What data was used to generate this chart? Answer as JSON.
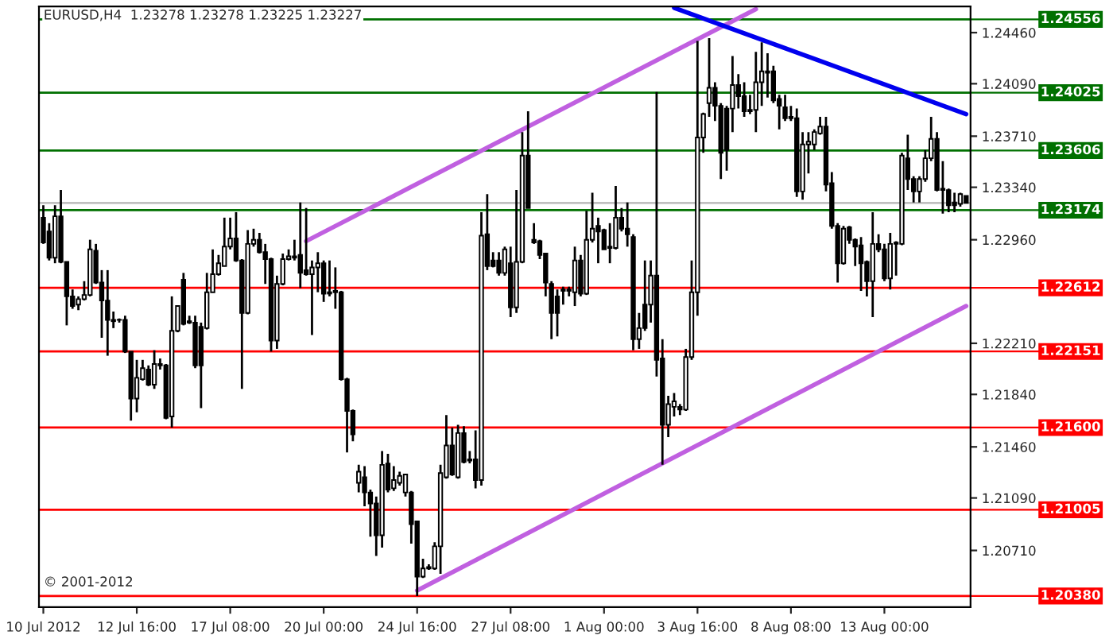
{
  "chart_data": {
    "type": "candlestick",
    "title": "EURUSD,H4  1.23278 1.23278 1.23225 1.23227",
    "annotations": [
      "© 2001-2012"
    ],
    "categories": [
      "10 Jul 2012",
      null,
      null,
      null,
      null,
      null,
      null,
      null,
      null,
      null,
      null,
      null,
      null,
      null,
      null,
      null,
      "12 Jul 16:00",
      null,
      null,
      null,
      null,
      null,
      null,
      null,
      null,
      null,
      null,
      null,
      null,
      null,
      null,
      null,
      "17 Jul 08:00",
      null,
      null,
      null,
      null,
      null,
      null,
      null,
      null,
      null,
      null,
      null,
      null,
      null,
      null,
      null,
      "20 Jul 00:00",
      null,
      null,
      null,
      null,
      null,
      null,
      null,
      null,
      null,
      null,
      null,
      null,
      null,
      null,
      null,
      "24 Jul 16:00",
      null,
      null,
      null,
      null,
      null,
      null,
      null,
      null,
      null,
      null,
      null,
      null,
      null,
      null,
      null,
      "27 Jul 08:00",
      null,
      null,
      null,
      null,
      null,
      null,
      null,
      null,
      null,
      null,
      null,
      null,
      null,
      null,
      null,
      "1 Aug 00:00",
      null,
      null,
      null,
      null,
      null,
      null,
      null,
      null,
      null,
      null,
      null,
      null,
      null,
      null,
      null,
      "3 Aug 16:00",
      null,
      null,
      null,
      null,
      null,
      null,
      null,
      null,
      null,
      null,
      null,
      null,
      null,
      null,
      null,
      "8 Aug 08:00",
      null,
      null,
      null,
      null,
      null,
      null,
      null,
      null,
      null,
      null,
      null,
      null,
      null,
      null,
      null,
      "13 Aug 00:00",
      null,
      null,
      null,
      null,
      null,
      null,
      null,
      null,
      null,
      null,
      null,
      null,
      null,
      null
    ],
    "ohlc": [
      [
        1.2312,
        1.2321,
        1.2293,
        1.2294
      ],
      [
        1.2302,
        1.2308,
        1.2281,
        1.2283
      ],
      [
        1.2283,
        1.2321,
        1.2279,
        1.2313
      ],
      [
        1.2313,
        1.2332,
        1.2279,
        1.228
      ],
      [
        1.228,
        1.228,
        1.2234,
        1.2255
      ],
      [
        1.2255,
        1.226,
        1.2246,
        1.2248
      ],
      [
        1.2249,
        1.2255,
        1.2245,
        1.2253
      ],
      [
        1.2253,
        1.2266,
        1.2252,
        1.2256
      ],
      [
        1.2256,
        1.2296,
        1.2255,
        1.2289
      ],
      [
        1.2288,
        1.2293,
        1.2264,
        1.2265
      ],
      [
        1.2265,
        1.2274,
        1.2225,
        1.2252
      ],
      [
        1.2252,
        1.2274,
        1.2212,
        1.2238
      ],
      [
        1.2238,
        1.2244,
        1.2232,
        1.2237
      ],
      [
        1.2238,
        1.2239,
        1.2236,
        1.2238
      ],
      [
        1.2238,
        1.2241,
        1.2214,
        1.2215
      ],
      [
        1.2215,
        1.2215,
        1.2165,
        1.2181
      ],
      [
        1.2181,
        1.2209,
        1.2171,
        1.2196
      ],
      [
        1.2195,
        1.2209,
        1.2194,
        1.2203
      ],
      [
        1.2202,
        1.2205,
        1.219,
        1.2191
      ],
      [
        1.2191,
        1.2216,
        1.2188,
        1.2206
      ],
      [
        1.2206,
        1.221,
        1.2202,
        1.2205
      ],
      [
        1.2205,
        1.2206,
        1.2166,
        1.2167
      ],
      [
        1.2168,
        1.2255,
        1.216,
        1.223
      ],
      [
        1.223,
        1.2248,
        1.2229,
        1.2248
      ],
      [
        1.2267,
        1.2272,
        1.2234,
        1.2235
      ],
      [
        1.2237,
        1.2241,
        1.2235,
        1.2236
      ],
      [
        1.2236,
        1.2241,
        1.2203,
        1.2205
      ],
      [
        1.2233,
        1.2236,
        1.2174,
        1.2205
      ],
      [
        1.2232,
        1.2272,
        1.2231,
        1.2258
      ],
      [
        1.2258,
        1.2289,
        1.2258,
        1.2271
      ],
      [
        1.2271,
        1.2285,
        1.227,
        1.2279
      ],
      [
        1.2277,
        1.2312,
        1.2277,
        1.2291
      ],
      [
        1.2291,
        1.2312,
        1.2289,
        1.2297
      ],
      [
        1.2297,
        1.2316,
        1.228,
        1.2281
      ],
      [
        1.2281,
        1.2282,
        1.2188,
        1.2243
      ],
      [
        1.2243,
        1.2303,
        1.2242,
        1.2293
      ],
      [
        1.2293,
        1.2304,
        1.2291,
        1.2296
      ],
      [
        1.2296,
        1.2301,
        1.2286,
        1.2287
      ],
      [
        1.2287,
        1.2293,
        1.2264,
        1.2282
      ],
      [
        1.2282,
        1.2283,
        1.2215,
        1.2223
      ],
      [
        1.2223,
        1.227,
        1.2217,
        1.2264
      ],
      [
        1.2264,
        1.2286,
        1.2263,
        1.2282
      ],
      [
        1.2282,
        1.2289,
        1.2281,
        1.2284
      ],
      [
        1.2284,
        1.2296,
        1.2281,
        1.2283
      ],
      [
        1.2285,
        1.2323,
        1.2261,
        1.2272
      ],
      [
        1.2274,
        1.2319,
        1.227,
        1.2271
      ],
      [
        1.2271,
        1.2281,
        1.2227,
        1.2276
      ],
      [
        1.2276,
        1.2287,
        1.2258,
        1.2279
      ],
      [
        1.2279,
        1.2281,
        1.2251,
        1.2257
      ],
      [
        1.2257,
        1.2281,
        1.2255,
        1.2258
      ],
      [
        1.2258,
        1.2276,
        1.2246,
        1.2259
      ],
      [
        1.2258,
        1.2259,
        1.2194,
        1.2195
      ],
      [
        1.2195,
        1.2196,
        1.2142,
        1.2172
      ],
      [
        1.2172,
        1.2173,
        1.215,
        1.2155
      ],
      [
        1.212,
        1.2133,
        1.2113,
        1.2128
      ],
      [
        1.2124,
        1.2132,
        1.2103,
        1.2113
      ],
      [
        1.2113,
        1.2115,
        1.2081,
        1.2105
      ],
      [
        1.2105,
        1.211,
        1.2067,
        1.2082
      ],
      [
        1.2082,
        1.2143,
        1.2073,
        1.2133
      ],
      [
        1.2134,
        1.2141,
        1.2113,
        1.2115
      ],
      [
        1.2116,
        1.2132,
        1.2114,
        1.2122
      ],
      [
        1.212,
        1.2128,
        1.2118,
        1.2125
      ],
      [
        1.2113,
        1.2126,
        1.211,
        1.2126
      ],
      [
        1.2113,
        1.2114,
        1.2076,
        1.209
      ],
      [
        1.2092,
        1.2092,
        1.2038,
        1.2052
      ],
      [
        1.2052,
        1.2065,
        1.2051,
        1.2058
      ],
      [
        1.2058,
        1.2061,
        1.2057,
        1.2059
      ],
      [
        1.2058,
        1.2077,
        1.2057,
        1.2074
      ],
      [
        1.2074,
        1.2133,
        1.2054,
        1.2127
      ],
      [
        1.2124,
        1.2169,
        1.2123,
        1.2147
      ],
      [
        1.2147,
        1.216,
        1.2125,
        1.2126
      ],
      [
        1.2124,
        1.2162,
        1.2123,
        1.2156
      ],
      [
        1.2156,
        1.2161,
        1.2134,
        1.2135
      ],
      [
        1.2137,
        1.2143,
        1.2134,
        1.2136
      ],
      [
        1.2137,
        1.2158,
        1.2116,
        1.2122
      ],
      [
        1.2122,
        1.2316,
        1.2118,
        1.2299
      ],
      [
        1.23,
        1.2329,
        1.2274,
        1.2277
      ],
      [
        1.2281,
        1.2287,
        1.2276,
        1.2277
      ],
      [
        1.2281,
        1.2287,
        1.227,
        1.2272
      ],
      [
        1.2272,
        1.2291,
        1.227,
        1.2289
      ],
      [
        1.2279,
        1.2291,
        1.224,
        1.2247
      ],
      [
        1.2247,
        1.2332,
        1.2243,
        1.228
      ],
      [
        1.228,
        1.2374,
        1.2279,
        1.2357
      ],
      [
        1.2357,
        1.2389,
        1.2319,
        1.2319
      ],
      [
        1.2296,
        1.2308,
        1.2293,
        1.2294
      ],
      [
        1.2295,
        1.2296,
        1.2282,
        1.2285
      ],
      [
        1.2286,
        1.2286,
        1.2255,
        1.2265
      ],
      [
        1.2264,
        1.2266,
        1.2224,
        1.2243
      ],
      [
        1.2255,
        1.226,
        1.2226,
        1.2243
      ],
      [
        1.226,
        1.2262,
        1.2249,
        1.2259
      ],
      [
        1.226,
        1.2262,
        1.2255,
        1.2259
      ],
      [
        1.2258,
        1.2291,
        1.2248,
        1.2281
      ],
      [
        1.2281,
        1.2285,
        1.2255,
        1.2257
      ],
      [
        1.2257,
        1.2317,
        1.2256,
        1.2296
      ],
      [
        1.2296,
        1.233,
        1.2294,
        1.2304
      ],
      [
        1.2306,
        1.2312,
        1.2279,
        1.2302
      ],
      [
        1.2303,
        1.2304,
        1.2289,
        1.2289
      ],
      [
        1.2291,
        1.2308,
        1.2279,
        1.229
      ],
      [
        1.229,
        1.2335,
        1.2289,
        1.2312
      ],
      [
        1.2312,
        1.2319,
        1.2302,
        1.2304
      ],
      [
        1.2304,
        1.2323,
        1.2291,
        1.23
      ],
      [
        1.2298,
        1.23,
        1.2216,
        1.2224
      ],
      [
        1.2224,
        1.2243,
        1.2217,
        1.2232
      ],
      [
        1.2249,
        1.2281,
        1.223,
        1.2232
      ],
      [
        1.2249,
        1.2281,
        1.2236,
        1.227
      ],
      [
        1.227,
        1.2403,
        1.2197,
        1.2209
      ],
      [
        1.221,
        1.2224,
        1.2133,
        1.2162
      ],
      [
        1.2162,
        1.2183,
        1.2153,
        1.2177
      ],
      [
        1.2175,
        1.2185,
        1.2168,
        1.2179
      ],
      [
        1.2175,
        1.2177,
        1.2169,
        1.2173
      ],
      [
        1.2173,
        1.2217,
        1.2172,
        1.2211
      ],
      [
        1.2211,
        1.2281,
        1.2209,
        1.2258
      ],
      [
        1.2258,
        1.244,
        1.2241,
        1.237
      ],
      [
        1.237,
        1.2388,
        1.2359,
        1.2387
      ],
      [
        1.2395,
        1.2442,
        1.2385,
        1.2406
      ],
      [
        1.2406,
        1.241,
        1.2382,
        1.2393
      ],
      [
        1.2393,
        1.2395,
        1.234,
        1.2359
      ],
      [
        1.2391,
        1.2393,
        1.2346,
        1.2361
      ],
      [
        1.2391,
        1.2429,
        1.2374,
        1.2408
      ],
      [
        1.2408,
        1.2416,
        1.2391,
        1.24
      ],
      [
        1.24,
        1.241,
        1.2385,
        1.2389
      ],
      [
        1.239,
        1.2401,
        1.2387,
        1.2389
      ],
      [
        1.239,
        1.2432,
        1.2374,
        1.241
      ],
      [
        1.241,
        1.2439,
        1.2393,
        1.2418
      ],
      [
        1.2418,
        1.2431,
        1.2399,
        1.2417
      ],
      [
        1.2418,
        1.2422,
        1.2395,
        1.2397
      ],
      [
        1.2398,
        1.2401,
        1.2376,
        1.2393
      ],
      [
        1.2392,
        1.2401,
        1.2382,
        1.2384
      ],
      [
        1.2385,
        1.2393,
        1.2382,
        1.2384
      ],
      [
        1.2384,
        1.2391,
        1.2327,
        1.2331
      ],
      [
        1.2331,
        1.2374,
        1.2325,
        1.2365
      ],
      [
        1.2365,
        1.2374,
        1.2344,
        1.2367
      ],
      [
        1.2365,
        1.2376,
        1.2361,
        1.2374
      ],
      [
        1.2373,
        1.2385,
        1.2372,
        1.2378
      ],
      [
        1.2378,
        1.2385,
        1.2331,
        1.2336
      ],
      [
        1.2337,
        1.2345,
        1.2304,
        1.2306
      ],
      [
        1.2306,
        1.2308,
        1.2265,
        1.2279
      ],
      [
        1.2279,
        1.2306,
        1.2278,
        1.2304
      ],
      [
        1.2305,
        1.2306,
        1.2293,
        1.2296
      ],
      [
        1.2296,
        1.2297,
        1.2277,
        1.2291
      ],
      [
        1.2292,
        1.2298,
        1.2259,
        1.2279
      ],
      [
        1.228,
        1.2281,
        1.2255,
        1.2266
      ],
      [
        1.2266,
        1.2316,
        1.224,
        1.2293
      ],
      [
        1.2293,
        1.23,
        1.2287,
        1.2289
      ],
      [
        1.2289,
        1.2293,
        1.2266,
        1.2268
      ],
      [
        1.2268,
        1.2301,
        1.226,
        1.2293
      ],
      [
        1.2294,
        1.2295,
        1.227,
        1.2293
      ],
      [
        1.2293,
        1.2359,
        1.2292,
        1.2357
      ],
      [
        1.2355,
        1.2372,
        1.2332,
        1.234
      ],
      [
        1.234,
        1.2342,
        1.2323,
        1.2331
      ],
      [
        1.2331,
        1.2342,
        1.2323,
        1.234
      ],
      [
        1.234,
        1.2361,
        1.2338,
        1.2355
      ],
      [
        1.2355,
        1.2385,
        1.2353,
        1.2369
      ],
      [
        1.2369,
        1.2374,
        1.2331,
        1.2332
      ],
      [
        1.2333,
        1.2353,
        1.2315,
        1.2332
      ],
      [
        1.2332,
        1.2333,
        1.2316,
        1.2321
      ],
      [
        1.2323,
        1.233,
        1.2316,
        1.2321
      ],
      [
        1.2322,
        1.233,
        1.232,
        1.2329
      ],
      [
        1.23278,
        1.23278,
        1.23225,
        1.23227
      ]
    ],
    "series": [
      {
        "type": "line",
        "color": "#c060e0",
        "values": [
          null,
          null,
          null,
          null,
          null,
          null,
          null,
          null,
          null,
          null,
          null,
          null,
          null,
          null,
          null,
          null,
          null,
          null,
          null,
          null,
          null,
          null,
          null,
          null,
          null,
          null,
          null,
          null,
          null,
          null,
          null,
          null,
          null,
          null,
          null,
          null,
          null,
          null,
          null,
          null,
          null,
          null,
          null,
          null,
          null,
          1.2295,
          null,
          null,
          null,
          null,
          null,
          null,
          null,
          null,
          null,
          null,
          null,
          null,
          null,
          null,
          null,
          null,
          null,
          null,
          null,
          null,
          null,
          null,
          null,
          null,
          null,
          null,
          null,
          null,
          null,
          null,
          null,
          null,
          null,
          null,
          null,
          null,
          null,
          null,
          null,
          null,
          null,
          null,
          null,
          null,
          null,
          null,
          null,
          null,
          null,
          null,
          null,
          null,
          null,
          null,
          null,
          null,
          null,
          null,
          null,
          null,
          null,
          null,
          null,
          null,
          null,
          null,
          null,
          null,
          null,
          null,
          null,
          null,
          null,
          null,
          null,
          null,
          1.2463,
          null,
          null,
          null,
          null,
          null,
          null,
          null,
          null,
          null,
          null,
          null,
          null,
          null,
          null,
          null,
          null,
          null,
          null,
          null,
          null,
          null,
          null,
          null,
          null,
          null,
          null,
          null,
          null,
          null,
          null,
          null,
          null,
          null,
          null,
          null,
          null
        ]
      },
      {
        "type": "line",
        "color": "#c060e0",
        "values": [
          null,
          null,
          null,
          null,
          null,
          null,
          null,
          null,
          null,
          null,
          null,
          null,
          null,
          null,
          null,
          null,
          null,
          null,
          null,
          null,
          null,
          null,
          null,
          null,
          null,
          null,
          null,
          null,
          null,
          null,
          null,
          null,
          null,
          null,
          null,
          null,
          null,
          null,
          null,
          null,
          null,
          null,
          null,
          null,
          null,
          null,
          null,
          null,
          null,
          null,
          null,
          null,
          null,
          null,
          null,
          null,
          null,
          null,
          null,
          null,
          null,
          null,
          null,
          null,
          1.2042,
          null,
          null,
          null,
          null,
          null,
          null,
          null,
          null,
          null,
          null,
          null,
          null,
          null,
          null,
          null,
          null,
          null,
          null,
          null,
          null,
          null,
          null,
          null,
          null,
          null,
          null,
          null,
          null,
          null,
          null,
          null,
          null,
          null,
          null,
          null,
          null,
          null,
          null,
          null,
          null,
          null,
          null,
          null,
          null,
          null,
          null,
          null,
          null,
          null,
          null,
          null,
          null,
          null,
          null,
          null,
          null,
          null,
          null,
          null,
          null,
          null,
          null,
          null,
          null,
          null,
          null,
          null,
          null,
          null,
          null,
          null,
          null,
          null,
          null,
          null,
          null,
          null,
          null,
          null,
          null,
          null,
          null,
          null,
          null,
          null,
          null,
          null,
          null,
          null,
          null,
          null,
          null,
          null,
          1.2248
        ]
      },
      {
        "type": "line",
        "color": "#0000ee",
        "values": [
          null,
          null,
          null,
          null,
          null,
          null,
          null,
          null,
          null,
          null,
          null,
          null,
          null,
          null,
          null,
          null,
          null,
          null,
          null,
          null,
          null,
          null,
          null,
          null,
          null,
          null,
          null,
          null,
          null,
          null,
          null,
          null,
          null,
          null,
          null,
          null,
          null,
          null,
          null,
          null,
          null,
          null,
          null,
          null,
          null,
          null,
          null,
          null,
          null,
          null,
          null,
          null,
          null,
          null,
          null,
          null,
          null,
          null,
          null,
          null,
          null,
          null,
          null,
          null,
          null,
          null,
          null,
          null,
          null,
          null,
          null,
          null,
          null,
          null,
          null,
          null,
          null,
          null,
          null,
          null,
          null,
          null,
          null,
          null,
          null,
          null,
          null,
          null,
          null,
          null,
          null,
          null,
          null,
          null,
          null,
          null,
          null,
          null,
          null,
          null,
          null,
          null,
          null,
          null,
          null,
          null,
          null,
          null,
          1.2464,
          null,
          null,
          null,
          null,
          null,
          null,
          null,
          null,
          null,
          null,
          null,
          null,
          null,
          null,
          null,
          null,
          null,
          null,
          null,
          null,
          null,
          null,
          null,
          null,
          null,
          null,
          null,
          null,
          null,
          null,
          null,
          null,
          null,
          null,
          null,
          null,
          null,
          null,
          null,
          null,
          null,
          null,
          null,
          null,
          null,
          null,
          null,
          null,
          null,
          1.2387
        ]
      }
    ],
    "ref_lines": [
      {
        "axis": "y",
        "value": 1.24556,
        "label": "1.24556",
        "color": "#007000"
      },
      {
        "axis": "y",
        "value": 1.24025,
        "label": "1.24025",
        "color": "#007000"
      },
      {
        "axis": "y",
        "value": 1.23606,
        "label": "1.23606",
        "color": "#007000"
      },
      {
        "axis": "y",
        "value": 1.23227,
        "color": "#c0c0c0"
      },
      {
        "axis": "y",
        "value": 1.23174,
        "label": "1.23174",
        "color": "#007000"
      },
      {
        "axis": "y",
        "value": 1.22612,
        "label": "1.22612",
        "color": "#ff0000"
      },
      {
        "axis": "y",
        "value": 1.22151,
        "label": "1.22151",
        "color": "#ff0000"
      },
      {
        "axis": "y",
        "value": 1.216,
        "label": "1.21600",
        "color": "#ff0000"
      },
      {
        "axis": "y",
        "value": 1.21005,
        "label": "1.21005",
        "color": "#ff0000"
      },
      {
        "axis": "y",
        "value": 1.2038,
        "label": "1.20380",
        "color": "#ff0000"
      }
    ],
    "ylim": [
      1.203,
      1.2465
    ],
    "yticks": [
      {
        "value": 1.2446,
        "label": "1.24460"
      },
      {
        "value": 1.2409,
        "label": "1.24090"
      },
      {
        "value": 1.2371,
        "label": "1.23710"
      },
      {
        "value": 1.2334,
        "label": "1.23340"
      },
      {
        "value": 1.2296,
        "label": "1.22960"
      },
      {
        "value": 1.2221,
        "label": "1.22210"
      },
      {
        "value": 1.2184,
        "label": "1.21840"
      },
      {
        "value": 1.2146,
        "label": "1.21460"
      },
      {
        "value": 1.2109,
        "label": "1.21090"
      },
      {
        "value": 1.2071,
        "label": "1.20710"
      }
    ],
    "color": "#000000"
  }
}
